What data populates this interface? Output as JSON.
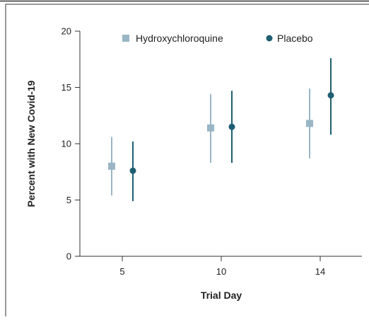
{
  "chart_data": {
    "type": "scatter",
    "title": "",
    "xlabel": "Trial Day",
    "ylabel": "Percent with New Covid-19",
    "categories": [
      "5",
      "10",
      "14"
    ],
    "y_ticks": [
      "0",
      "5",
      "10",
      "15",
      "20"
    ],
    "ylim": [
      0,
      20
    ],
    "grid": false,
    "legend": "top",
    "series": [
      {
        "name": "Hydroxychloroquine",
        "marker": "square",
        "color": "#9ab6c6",
        "values": [
          8.0,
          11.4,
          11.8
        ],
        "lower": [
          5.4,
          8.3,
          8.7
        ],
        "upper": [
          10.6,
          14.4,
          14.9
        ]
      },
      {
        "name": "Placebo",
        "marker": "circle",
        "color": "#1f5f73",
        "values": [
          7.6,
          11.5,
          14.3
        ],
        "lower": [
          4.9,
          8.3,
          10.8
        ],
        "upper": [
          10.2,
          14.7,
          17.6
        ]
      }
    ]
  }
}
